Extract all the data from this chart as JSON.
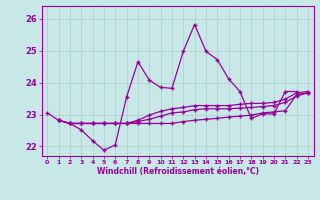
{
  "xlabel": "Windchill (Refroidissement éolien,°C)",
  "xlim": [
    -0.5,
    23.5
  ],
  "ylim": [
    21.7,
    26.4
  ],
  "yticks": [
    22,
    23,
    24,
    25,
    26
  ],
  "xticks": [
    0,
    1,
    2,
    3,
    4,
    5,
    6,
    7,
    8,
    9,
    10,
    11,
    12,
    13,
    14,
    15,
    16,
    17,
    18,
    19,
    20,
    21,
    22,
    23
  ],
  "background_color": "#c8e8e8",
  "line_color": "#990099",
  "grid_color": "#aacccc",
  "series_main": [
    23.05,
    22.82,
    22.72,
    22.52,
    22.18,
    21.88,
    22.05,
    23.55,
    24.65,
    24.08,
    23.85,
    23.82,
    24.98,
    25.82,
    24.98,
    24.72,
    24.12,
    23.72,
    22.88,
    23.02,
    23.02,
    23.72,
    23.72
  ],
  "series2": [
    22.82,
    22.72,
    22.72,
    22.72,
    22.72,
    22.72,
    22.72,
    22.72,
    22.72,
    22.72,
    22.72,
    22.78,
    22.82,
    22.85,
    22.88,
    22.92,
    22.95,
    22.98,
    23.05,
    23.08,
    23.12,
    23.62,
    23.68
  ],
  "series3": [
    22.82,
    22.72,
    22.72,
    22.72,
    22.72,
    22.72,
    22.72,
    22.78,
    22.85,
    22.95,
    23.05,
    23.08,
    23.15,
    23.18,
    23.18,
    23.18,
    23.2,
    23.22,
    23.25,
    23.28,
    23.38,
    23.58,
    23.68
  ],
  "series4": [
    22.82,
    22.72,
    22.72,
    22.72,
    22.72,
    22.72,
    22.72,
    22.82,
    22.98,
    23.1,
    23.18,
    23.22,
    23.28,
    23.28,
    23.28,
    23.28,
    23.32,
    23.35,
    23.35,
    23.38,
    23.48,
    23.68,
    23.72
  ]
}
